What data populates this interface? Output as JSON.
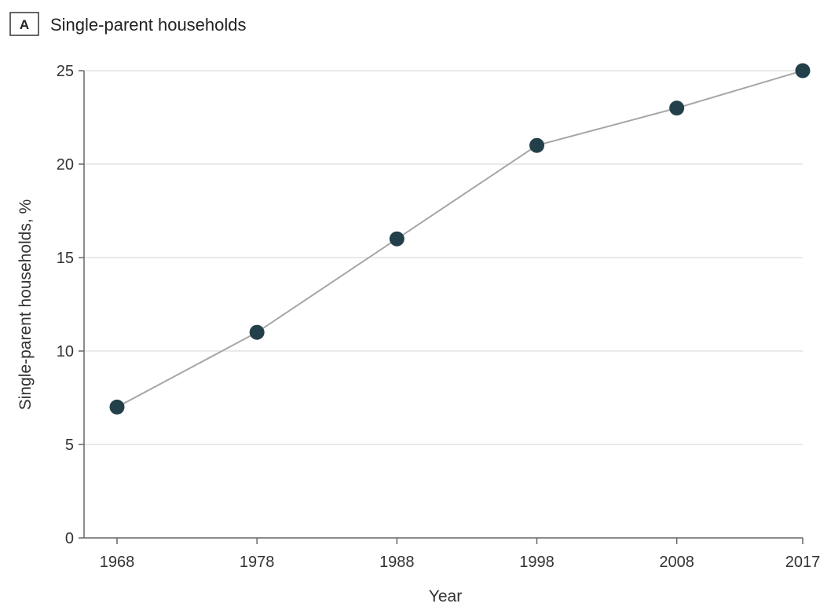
{
  "panel": {
    "letter": "A",
    "title": "Single-parent households"
  },
  "chart_data": {
    "type": "line",
    "title": "Single-parent households",
    "xlabel": "Year",
    "ylabel": "Single-parent households, %",
    "x": [
      "1968",
      "1978",
      "1988",
      "1998",
      "2008",
      "2017"
    ],
    "series": [
      {
        "values": [
          7,
          11,
          16,
          21,
          23,
          25
        ]
      }
    ],
    "ylim": [
      0,
      25
    ],
    "yticks": [
      0,
      5,
      10,
      15,
      20,
      25
    ],
    "grid": true,
    "legend": "none",
    "colors": {
      "marker": "#23404a",
      "line": "#a6a6a6",
      "grid": "#dddddd"
    }
  }
}
